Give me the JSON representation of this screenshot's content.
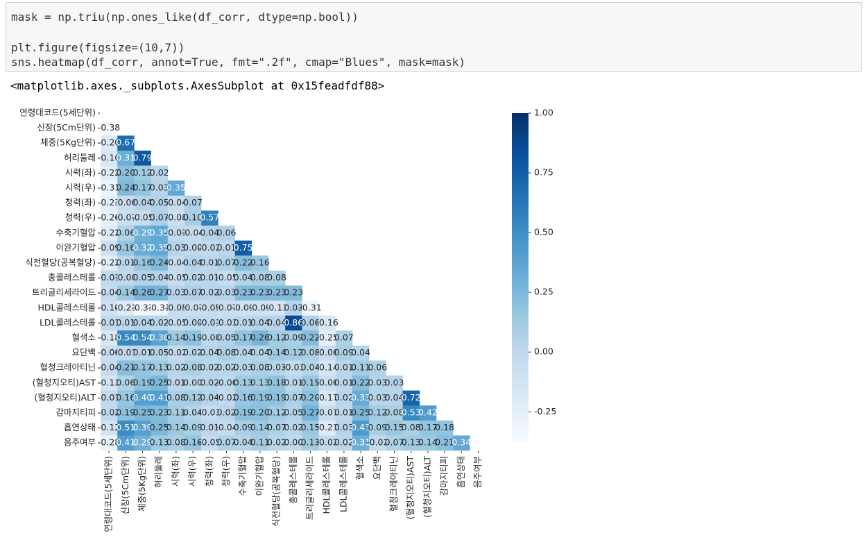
{
  "code_cell": {
    "lines": [
      "mask = np.triu(np.ones_like(df_corr, dtype=np.bool))",
      "plt.figure(figsize=(10,7))",
      "sns.heatmap(df_corr, annot=True, fmt=\".2f\", cmap=\"Blues\", mask=mask)"
    ]
  },
  "output_text": "<matplotlib.axes._subplots.AxesSubplot at 0x15feadfdf88>",
  "chart_data": {
    "type": "heatmap",
    "cmap": "Blues",
    "labels": [
      "연령대코드(5세단위)",
      "신장(5Cm단위)",
      "체중(5Kg단위)",
      "허리둘레",
      "시력(좌)",
      "시력(우)",
      "청력(좌)",
      "청력(우)",
      "수축기혈압",
      "이완기혈압",
      "식전혈당(공복혈당)",
      "총콜레스테롤",
      "트리글리세라이드",
      "HDL콜레스테롤",
      "LDL콜레스테롤",
      "혈색소",
      "요단백",
      "혈청크레아티닌",
      "(혈청지오티)AST",
      "(혈청지오티)ALT",
      "감마지티피",
      "흡연상태",
      "음주여부"
    ],
    "values": [
      [],
      [
        -0.38
      ],
      [
        -0.2,
        0.67
      ],
      [
        -0.16,
        0.31,
        0.79
      ],
      [
        -0.22,
        0.2,
        0.12,
        0.02
      ],
      [
        -0.31,
        0.24,
        0.17,
        0.03,
        0.35
      ],
      [
        -0.23,
        -0.06,
        0.04,
        0.05,
        -0.04,
        0.07
      ],
      [
        -0.26,
        -0.07,
        -0.05,
        0.07,
        -0.08,
        0.1,
        0.57
      ],
      [
        -0.22,
        0.06,
        0.29,
        0.35,
        -0.01,
        -0.04,
        0.04,
        0.06
      ],
      [
        -0.09,
        0.16,
        0.32,
        0.35,
        0.03,
        0.0,
        -0.02,
        0.01,
        0.75
      ],
      [
        -0.22,
        0.01,
        0.16,
        0.24,
        -0.04,
        0.04,
        0.01,
        0.07,
        0.22,
        0.16
      ],
      [
        -0.01,
        0.0,
        0.05,
        0.04,
        -0.05,
        0.02,
        0.01,
        -0.05,
        0.04,
        0.08,
        0.08
      ],
      [
        -0.04,
        0.14,
        0.26,
        0.27,
        0.03,
        0.07,
        0.02,
        0.03,
        0.23,
        0.23,
        0.23,
        0.23
      ],
      [
        -0.1,
        -0.21,
        -0.33,
        -0.31,
        -0.05,
        -0.07,
        -0.05,
        -0.07,
        -0.09,
        -0.09,
        -0.13,
        0.03,
        -0.31
      ],
      [
        -0.01,
        0.01,
        0.04,
        0.02,
        -0.05,
        0.0,
        -0.01,
        -0.03,
        0.01,
        0.04,
        0.04,
        0.86,
        0.06,
        -0.16
      ],
      [
        -0.18,
        0.54,
        0.54,
        0.38,
        0.14,
        0.19,
        0.0,
        0.05,
        0.17,
        0.26,
        0.12,
        0.09,
        0.22,
        -0.25,
        0.07
      ],
      [
        -0.06,
        -0.01,
        0.01,
        0.05,
        -0.02,
        0.02,
        0.04,
        0.08,
        0.04,
        0.04,
        0.14,
        0.12,
        0.08,
        -0.06,
        0.09,
        0.04
      ],
      [
        -0.04,
        0.21,
        0.17,
        0.13,
        0.02,
        0.08,
        0.02,
        0.02,
        0.03,
        0.08,
        0.03,
        -0.03,
        0.04,
        -0.14,
        0.01,
        0.11,
        0.06
      ],
      [
        -0.13,
        0.06,
        0.19,
        0.25,
        0.01,
        0.0,
        0.02,
        0.0,
        0.13,
        0.13,
        0.18,
        0.01,
        0.15,
        -0.06,
        0.01,
        0.22,
        0.03,
        0.03
      ],
      [
        -0.01,
        0.16,
        0.4,
        0.41,
        0.08,
        0.12,
        0.04,
        -0.02,
        0.16,
        0.19,
        0.19,
        0.07,
        0.2,
        -0.17,
        0.02,
        0.33,
        0.03,
        0.04,
        0.72
      ],
      [
        -0.02,
        0.19,
        0.25,
        0.23,
        0.11,
        0.04,
        -0.03,
        0.02,
        0.19,
        0.2,
        0.12,
        0.05,
        0.27,
        -0.07,
        0.01,
        0.25,
        0.12,
        0.08,
        0.53,
        0.42
      ],
      [
        -0.12,
        0.51,
        0.39,
        0.25,
        0.14,
        0.09,
        0.01,
        -0.04,
        0.09,
        0.14,
        0.07,
        0.02,
        0.15,
        -0.21,
        0.03,
        0.43,
        0.09,
        0.15,
        0.08,
        0.17,
        0.18
      ],
      [
        -0.28,
        0.41,
        0.29,
        0.13,
        0.08,
        0.16,
        -0.05,
        0.07,
        0.04,
        0.11,
        0.02,
        0.0,
        0.13,
        -0.02,
        0.02,
        0.31,
        -0.02,
        0.07,
        0.13,
        0.14,
        0.21,
        0.34
      ]
    ],
    "value_labels": [
      [],
      [
        "-0.38"
      ],
      [
        "-0.20",
        "0.67"
      ],
      [
        "-0.16",
        "0.31",
        "0.79"
      ],
      [
        "-0.22",
        "0.20",
        "0.12",
        "0.02"
      ],
      [
        "-0.31",
        "0.24",
        "0.17",
        "0.03",
        "0.35"
      ],
      [
        "-0.23",
        "-0.06",
        "0.04",
        "0.05",
        "-0.04",
        "0.07"
      ],
      [
        "-0.26",
        "-0.07",
        "-0.05",
        "0.07",
        "-0.08",
        "0.10",
        "0.57"
      ],
      [
        "-0.22",
        "0.06",
        "0.29",
        "0.35",
        "-0.01",
        "-0.04",
        "0.04",
        "0.06"
      ],
      [
        "-0.09",
        "0.16",
        "0.32",
        "0.35",
        "0.03",
        "0.00",
        "-0.02",
        "0.01",
        "0.75"
      ],
      [
        "-0.22",
        "0.01",
        "0.16",
        "0.24",
        "-0.04",
        "0.04",
        "0.01",
        "0.07",
        "0.22",
        "0.16"
      ],
      [
        "-0.01",
        "-0.00",
        "0.05",
        "0.04",
        "-0.05",
        "0.02",
        "0.01",
        "-0.05",
        "0.04",
        "0.08",
        "0.08"
      ],
      [
        "-0.04",
        "0.14",
        "0.26",
        "0.27",
        "0.03",
        "0.07",
        "0.02",
        "0.03",
        "0.23",
        "0.23",
        "0.23",
        "0.23"
      ],
      [
        "-0.10",
        "-0.21",
        "-0.33",
        "-0.31",
        "-0.05",
        "-0.07",
        "-0.05",
        "-0.07",
        "-0.09",
        "-0.09",
        "-0.13",
        "0.03",
        "-0.31"
      ],
      [
        "-0.01",
        "0.01",
        "0.04",
        "0.02",
        "-0.05",
        "0.00",
        "-0.01",
        "-0.03",
        "0.01",
        "0.04",
        "0.04",
        "0.86",
        "0.06",
        "-0.16"
      ],
      [
        "-0.18",
        "0.54",
        "0.54",
        "0.38",
        "0.14",
        "0.19",
        "-0.00",
        "0.05",
        "0.17",
        "0.26",
        "0.12",
        "0.09",
        "0.22",
        "-0.25",
        "0.07"
      ],
      [
        "-0.06",
        "-0.01",
        "0.01",
        "0.05",
        "-0.02",
        "0.02",
        "0.04",
        "0.08",
        "0.04",
        "0.04",
        "0.14",
        "0.12",
        "0.08",
        "-0.06",
        "0.09",
        "0.04"
      ],
      [
        "-0.04",
        "0.21",
        "0.17",
        "0.13",
        "0.02",
        "0.08",
        "0.02",
        "0.02",
        "0.03",
        "0.08",
        "0.03",
        "-0.03",
        "0.04",
        "-0.14",
        "0.01",
        "0.11",
        "0.06"
      ],
      [
        "-0.13",
        "0.06",
        "0.19",
        "0.25",
        "0.01",
        "0.00",
        "0.02",
        "-0.00",
        "0.13",
        "0.13",
        "0.18",
        "0.01",
        "0.15",
        "-0.06",
        "0.01",
        "0.22",
        "0.03",
        "0.03"
      ],
      [
        "-0.01",
        "0.16",
        "0.40",
        "0.41",
        "0.08",
        "0.12",
        "0.04",
        "-0.02",
        "0.16",
        "0.19",
        "0.19",
        "0.07",
        "0.20",
        "-0.17",
        "0.02",
        "0.33",
        "0.03",
        "0.04",
        "0.72"
      ],
      [
        "-0.02",
        "0.19",
        "0.25",
        "0.23",
        "0.11",
        "0.04",
        "-0.03",
        "0.02",
        "0.19",
        "0.20",
        "0.12",
        "0.05",
        "0.27",
        "-0.07",
        "0.01",
        "0.25",
        "0.12",
        "0.08",
        "0.53",
        "0.42"
      ],
      [
        "-0.12",
        "0.51",
        "0.39",
        "0.25",
        "0.14",
        "0.09",
        "0.01",
        "-0.04",
        "0.09",
        "0.14",
        "0.07",
        "0.02",
        "0.15",
        "-0.21",
        "0.03",
        "0.43",
        "0.09",
        "0.15",
        "0.08",
        "0.17",
        "0.18"
      ],
      [
        "-0.28",
        "0.41",
        "0.29",
        "0.13",
        "0.08",
        "0.16",
        "-0.05",
        "0.07",
        "0.04",
        "0.11",
        "0.02",
        "0.00",
        "0.13",
        "-0.02",
        "0.02",
        "0.31",
        "-0.02",
        "0.07",
        "0.13",
        "0.14",
        "0.21",
        "0.34"
      ]
    ],
    "clim": [
      -0.38,
      1.0
    ],
    "cticks": [
      {
        "value": -0.25,
        "label": "-0.25"
      },
      {
        "value": 0,
        "label": "0.00"
      },
      {
        "value": 0.25,
        "label": "0.25"
      },
      {
        "value": 0.5,
        "label": "0.50"
      },
      {
        "value": 0.75,
        "label": "0.75"
      },
      {
        "value": 1.0,
        "label": "1.00"
      }
    ]
  }
}
